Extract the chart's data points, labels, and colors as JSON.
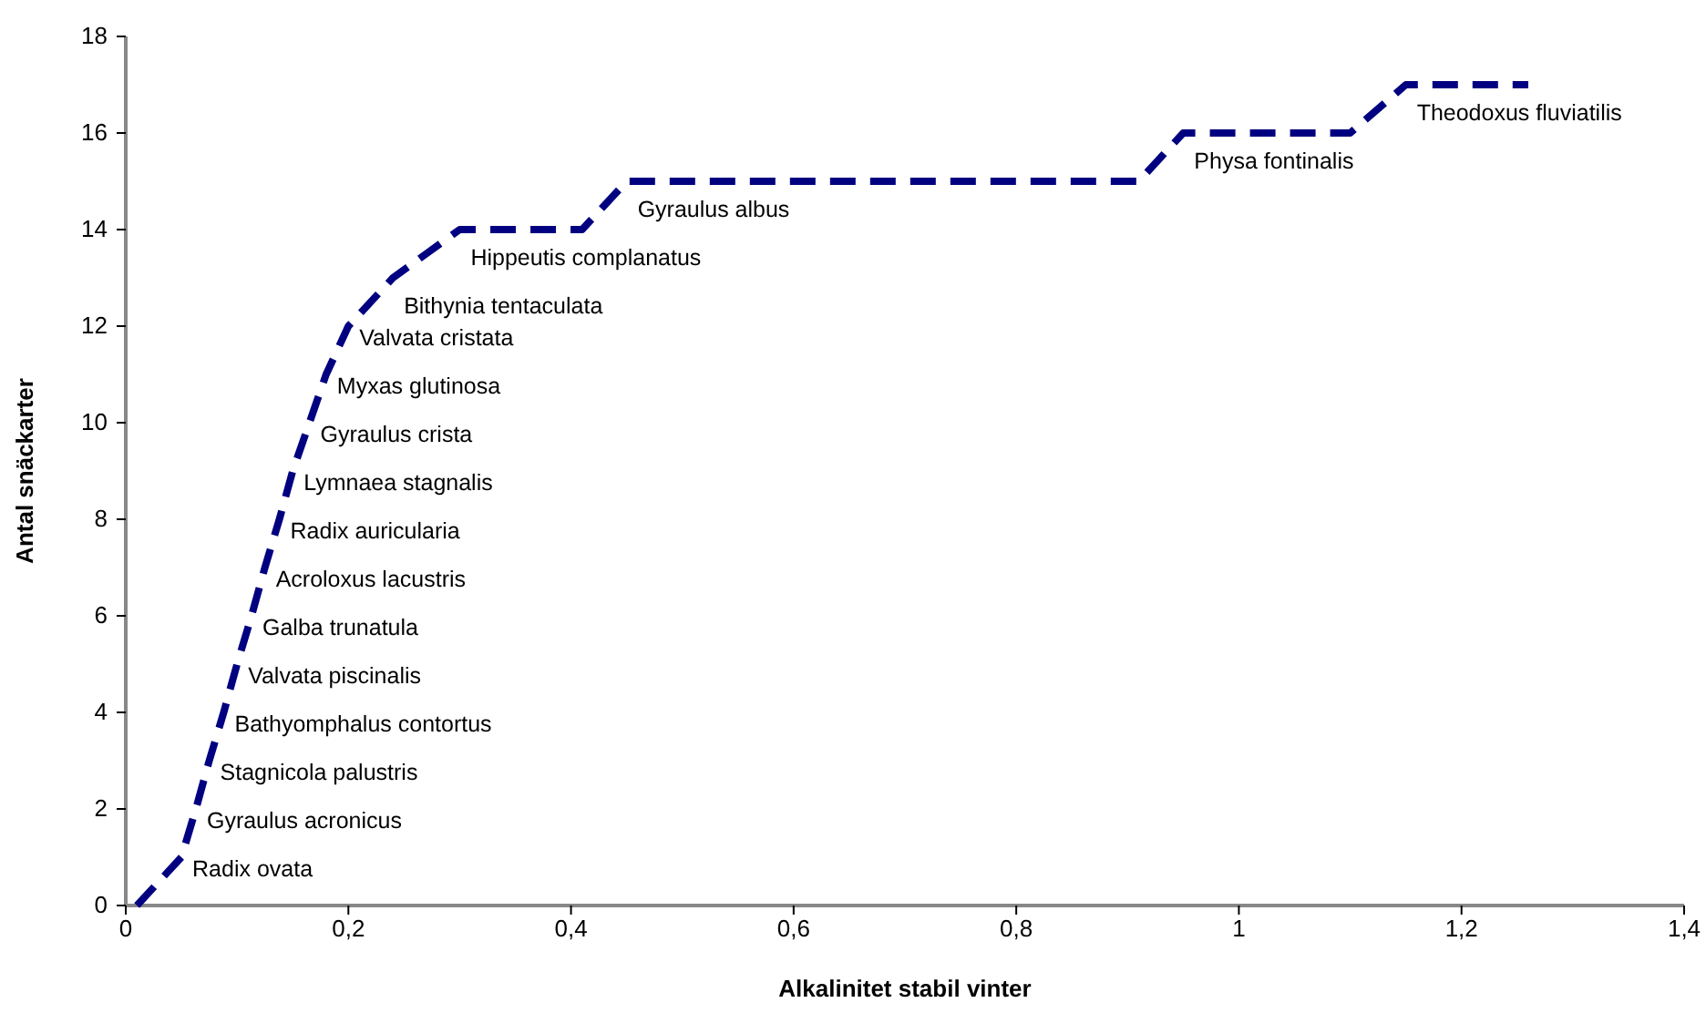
{
  "chart_data": {
    "type": "line",
    "xlabel": "Alkalinitet stabil vinter",
    "ylabel": "Antal snäckarter",
    "xlim": [
      0,
      1.4
    ],
    "ylim": [
      0,
      18
    ],
    "xticks": [
      0,
      {
        "value": 0.2,
        "label": "0,2"
      },
      {
        "value": 0.4,
        "label": "0,4"
      },
      {
        "value": 0.6,
        "label": "0,6"
      },
      {
        "value": 0.8,
        "label": "0,8"
      },
      1,
      {
        "value": 1.2,
        "label": "1,2"
      },
      {
        "value": 1.4,
        "label": "1,4"
      }
    ],
    "yticks": [
      0,
      2,
      4,
      6,
      8,
      10,
      12,
      14,
      16,
      18
    ],
    "grid": false,
    "marker": "none",
    "line_style": "dashed",
    "series": [
      {
        "color": "#000080",
        "x": [
          0.01,
          0.05,
          0.063,
          0.075,
          0.088,
          0.1,
          0.113,
          0.125,
          0.138,
          0.15,
          0.165,
          0.18,
          0.2,
          0.24,
          0.3,
          0.41,
          0.45,
          0.91,
          0.95,
          1.1,
          1.15,
          1.26
        ],
        "values": [
          0,
          1,
          2,
          3,
          4,
          5,
          6,
          7,
          8,
          9,
          10,
          11,
          12,
          13,
          14,
          14,
          15,
          15,
          16,
          16,
          17,
          17
        ]
      }
    ],
    "annotations": [
      {
        "text": "Radix ovata",
        "x": 0.05,
        "y": 1
      },
      {
        "text": "Gyraulus acronicus",
        "x": 0.063,
        "y": 2
      },
      {
        "text": "Stagnicola palustris",
        "x": 0.075,
        "y": 3
      },
      {
        "text": "Bathyomphalus contortus",
        "x": 0.088,
        "y": 4
      },
      {
        "text": "Valvata piscinalis",
        "x": 0.1,
        "y": 5
      },
      {
        "text": "Galba trunatula",
        "x": 0.113,
        "y": 6
      },
      {
        "text": "Acroloxus lacustris",
        "x": 0.125,
        "y": 7
      },
      {
        "text": "Radix auricularia",
        "x": 0.138,
        "y": 8
      },
      {
        "text": "Lymnaea stagnalis",
        "x": 0.15,
        "y": 9
      },
      {
        "text": "Gyraulus crista",
        "x": 0.165,
        "y": 10
      },
      {
        "text": "Myxas glutinosa",
        "x": 0.18,
        "y": 11
      },
      {
        "text": "Valvata cristata",
        "x": 0.2,
        "y": 12
      },
      {
        "text": "Bithynia tentaculata",
        "x": 0.24,
        "y": 13
      },
      {
        "text": "Hippeutis complanatus",
        "x": 0.3,
        "y": 14
      },
      {
        "text": "Gyraulus albus",
        "x": 0.45,
        "y": 15
      },
      {
        "text": "Physa fontinalis",
        "x": 0.95,
        "y": 16
      },
      {
        "text": "Theodoxus fluviatilis",
        "x": 1.15,
        "y": 17
      }
    ]
  }
}
